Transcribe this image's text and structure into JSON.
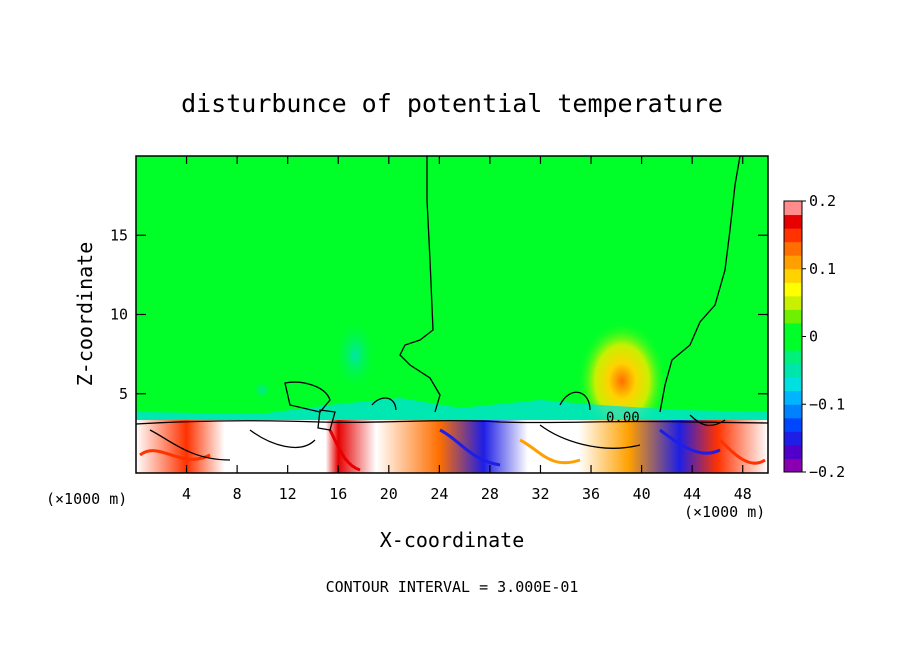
{
  "chart_data": {
    "type": "heatmap",
    "title": "disturbunce of potential temperature",
    "xlabel": "X-coordinate",
    "ylabel": "Z-coordinate",
    "x_unit_left": "(×1000 m)",
    "x_unit_right": "(×1000 m)",
    "xlim": [
      0,
      50
    ],
    "ylim": [
      0,
      20
    ],
    "x_ticks": [
      4,
      8,
      12,
      16,
      20,
      24,
      28,
      32,
      36,
      40,
      44,
      48
    ],
    "y_ticks": [
      5,
      10,
      15
    ],
    "colorbar": {
      "range": [
        -0.2,
        0.2
      ],
      "tick_values": [
        0.2,
        0.1,
        0,
        -0.1,
        -0.2
      ],
      "tick_labels": [
        "0.2",
        "0.1",
        "0",
        "−0.1",
        "−0.2"
      ],
      "colors": [
        "#8a00b0",
        "#5000c8",
        "#1e1ee6",
        "#0046ff",
        "#0082ff",
        "#00b4ff",
        "#00e0e0",
        "#00e6aa",
        "#00f07a",
        "#00ff28",
        "#00ff28",
        "#6ef000",
        "#c8f000",
        "#ffff00",
        "#ffd200",
        "#ffa000",
        "#ff6e00",
        "#ff3200",
        "#e60000",
        "#ff8c8c"
      ]
    },
    "contour_label": "0.00",
    "contour_interval_text": "CONTOUR INTERVAL = 3.000E-01",
    "background_color": "#00ff28"
  }
}
